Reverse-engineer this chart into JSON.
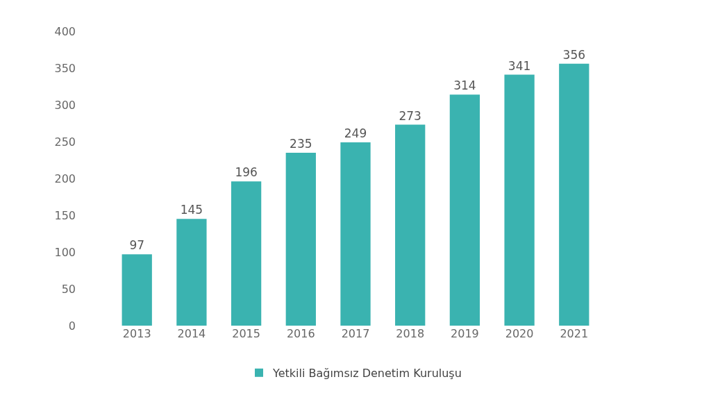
{
  "chart_data": {
    "type": "bar",
    "categories": [
      "2013",
      "2014",
      "2015",
      "2016",
      "2017",
      "2018",
      "2019",
      "2020",
      "2021"
    ],
    "series": [
      {
        "name": "Yetkili Bağımsız Denetim Kuruluşu",
        "color": "#3ab3b0",
        "values": [
          97,
          145,
          196,
          235,
          249,
          273,
          314,
          341,
          356
        ]
      }
    ],
    "ylim": [
      0,
      400
    ],
    "yticks": [
      0,
      50,
      100,
      150,
      200,
      250,
      300,
      350,
      400
    ],
    "data_labels": true,
    "grid": false,
    "legend": "bottom"
  }
}
